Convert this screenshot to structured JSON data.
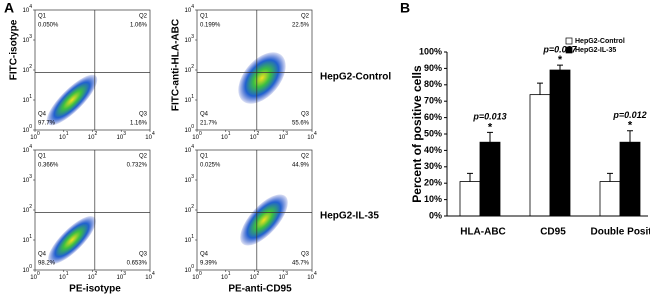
{
  "panel_a": {
    "label": "A",
    "y_labels": [
      "FITC-isotype",
      "FITC-anti-HLA-ABC"
    ],
    "x_labels": [
      "PE-isotype",
      "PE-anti-CD95"
    ],
    "row_labels": [
      "HepG2-Control",
      "HepG2-IL-35"
    ],
    "axis_base": "10",
    "axis_exponents": [
      0,
      1,
      2,
      3,
      4
    ],
    "plots": [
      {
        "quadrants": [
          {
            "name": "Q1",
            "value": "0.050%"
          },
          {
            "name": "Q2",
            "value": "1.06%"
          },
          {
            "name": "Q3",
            "value": "1.16%"
          },
          {
            "name": "Q4",
            "value": "97.7%"
          }
        ]
      },
      {
        "quadrants": [
          {
            "name": "Q1",
            "value": "0.199%"
          },
          {
            "name": "Q2",
            "value": "22.5%"
          },
          {
            "name": "Q3",
            "value": "55.6%"
          },
          {
            "name": "Q4",
            "value": "21.7%"
          }
        ]
      },
      {
        "quadrants": [
          {
            "name": "Q1",
            "value": "0.366%"
          },
          {
            "name": "Q2",
            "value": "0.732%"
          },
          {
            "name": "Q3",
            "value": "0.653%"
          },
          {
            "name": "Q4",
            "value": "98.2%"
          }
        ]
      },
      {
        "quadrants": [
          {
            "name": "Q1",
            "value": "0.025%"
          },
          {
            "name": "Q2",
            "value": "44.9%"
          },
          {
            "name": "Q3",
            "value": "45.7%"
          },
          {
            "name": "Q4",
            "value": "9.39%"
          }
        ]
      }
    ]
  },
  "chart_data": {
    "type": "bar",
    "label": "B",
    "y_label": "Percent of positive cells",
    "categories": [
      "HLA-ABC",
      "CD95",
      "Double Positive"
    ],
    "series": [
      {
        "name": "HepG2-Control",
        "color": "#ffffff",
        "values": [
          21,
          74,
          21
        ],
        "errors": [
          5,
          7,
          5
        ]
      },
      {
        "name": "HepG2-IL-35",
        "color": "#000000",
        "values": [
          45,
          89,
          45
        ],
        "errors": [
          6,
          3,
          7
        ]
      }
    ],
    "annotations": [
      {
        "text": "p=0.013",
        "mark": "*"
      },
      {
        "text": "p=0.037",
        "mark": "*"
      },
      {
        "text": "p=0.012",
        "mark": "*"
      }
    ],
    "ylim": [
      0,
      100
    ],
    "yticks": [
      {
        "value": 0,
        "label": "0%"
      },
      {
        "value": 10,
        "label": "10%"
      },
      {
        "value": 20,
        "label": "20%"
      },
      {
        "value": 30,
        "label": "30%"
      },
      {
        "value": 40,
        "label": "40%"
      },
      {
        "value": 50,
        "label": "50%"
      },
      {
        "value": 60,
        "label": "60%"
      },
      {
        "value": 70,
        "label": "70%"
      },
      {
        "value": 80,
        "label": "80%"
      },
      {
        "value": 90,
        "label": "90%"
      },
      {
        "value": 100,
        "label": "100%"
      }
    ],
    "legend": "top-right"
  }
}
